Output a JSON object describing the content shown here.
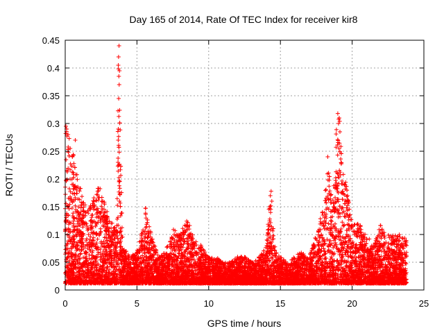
{
  "chart_data": {
    "type": "scatter",
    "title": "Day 165 of 2014, Rate Of TEC Index for receiver kir8",
    "xlabel": "GPS time / hours",
    "ylabel": "ROTI / TECUs",
    "xlim": [
      0,
      25
    ],
    "ylim": [
      0,
      0.45
    ],
    "xticks": [
      "0",
      "5",
      "10",
      "15",
      "20",
      "25"
    ],
    "yticks": [
      "0",
      "0.05",
      "0.1",
      "0.15",
      "0.2",
      "0.25",
      "0.3",
      "0.35",
      "0.4",
      "0.45"
    ],
    "grid": true,
    "marker": "+",
    "color": "#ff0000",
    "series": [
      {
        "name": "ROTI",
        "envelope_description": "dense scatter from 0 to 24 h; upper envelope sampled below (hour, max ROTI)",
        "envelope": [
          [
            0.0,
            0.3
          ],
          [
            0.2,
            0.29
          ],
          [
            0.4,
            0.26
          ],
          [
            0.6,
            0.25
          ],
          [
            0.8,
            0.21
          ],
          [
            1.0,
            0.19
          ],
          [
            1.3,
            0.16
          ],
          [
            1.6,
            0.15
          ],
          [
            2.0,
            0.17
          ],
          [
            2.3,
            0.19
          ],
          [
            2.6,
            0.19
          ],
          [
            3.0,
            0.13
          ],
          [
            3.3,
            0.12
          ],
          [
            3.6,
            0.11
          ],
          [
            3.7,
            0.44
          ],
          [
            3.8,
            0.35
          ],
          [
            4.0,
            0.08
          ],
          [
            4.5,
            0.06
          ],
          [
            5.0,
            0.07
          ],
          [
            5.4,
            0.11
          ],
          [
            5.6,
            0.15
          ],
          [
            6.0,
            0.1
          ],
          [
            6.5,
            0.06
          ],
          [
            7.0,
            0.07
          ],
          [
            7.5,
            0.11
          ],
          [
            8.0,
            0.1
          ],
          [
            8.5,
            0.13
          ],
          [
            9.0,
            0.09
          ],
          [
            9.5,
            0.08
          ],
          [
            10.0,
            0.06
          ],
          [
            10.5,
            0.06
          ],
          [
            11.0,
            0.05
          ],
          [
            11.5,
            0.05
          ],
          [
            12.0,
            0.06
          ],
          [
            12.5,
            0.06
          ],
          [
            13.0,
            0.05
          ],
          [
            13.5,
            0.06
          ],
          [
            14.0,
            0.08
          ],
          [
            14.3,
            0.18
          ],
          [
            14.6,
            0.08
          ],
          [
            15.0,
            0.06
          ],
          [
            15.5,
            0.05
          ],
          [
            16.0,
            0.06
          ],
          [
            16.5,
            0.07
          ],
          [
            17.0,
            0.06
          ],
          [
            17.5,
            0.1
          ],
          [
            18.0,
            0.15
          ],
          [
            18.3,
            0.22
          ],
          [
            18.6,
            0.21
          ],
          [
            18.9,
            0.29
          ],
          [
            19.1,
            0.32
          ],
          [
            19.3,
            0.24
          ],
          [
            19.6,
            0.19
          ],
          [
            20.0,
            0.12
          ],
          [
            20.5,
            0.12
          ],
          [
            21.0,
            0.1
          ],
          [
            21.5,
            0.08
          ],
          [
            22.0,
            0.12
          ],
          [
            22.5,
            0.1
          ],
          [
            23.0,
            0.1
          ],
          [
            23.5,
            0.1
          ],
          [
            23.8,
            0.09
          ]
        ],
        "outliers": [
          [
            3.75,
            0.44
          ],
          [
            3.72,
            0.42
          ],
          [
            3.7,
            0.405
          ],
          [
            3.78,
            0.395
          ],
          [
            3.74,
            0.385
          ],
          [
            3.76,
            0.37
          ],
          [
            3.73,
            0.345
          ],
          [
            3.7,
            0.29
          ],
          [
            3.72,
            0.225
          ],
          [
            3.75,
            0.195
          ],
          [
            3.78,
            0.16
          ],
          [
            0.05,
            0.295
          ],
          [
            0.1,
            0.29
          ],
          [
            0.2,
            0.28
          ],
          [
            0.35,
            0.255
          ],
          [
            0.5,
            0.24
          ],
          [
            0.7,
            0.27
          ],
          [
            19.0,
            0.318
          ],
          [
            19.1,
            0.31
          ],
          [
            19.05,
            0.3
          ],
          [
            19.15,
            0.285
          ],
          [
            18.3,
            0.24
          ],
          [
            14.35,
            0.178
          ],
          [
            14.3,
            0.17
          ],
          [
            14.4,
            0.16
          ],
          [
            5.6,
            0.147
          ]
        ]
      }
    ]
  }
}
